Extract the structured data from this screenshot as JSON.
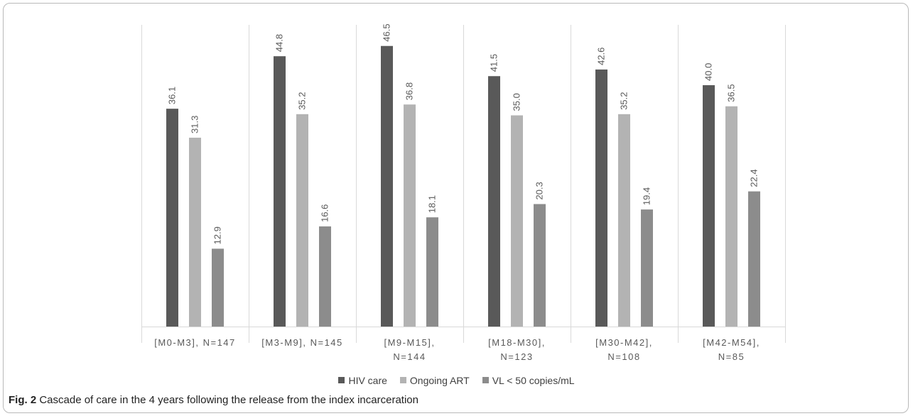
{
  "chart_data": {
    "type": "bar",
    "categories": [
      [
        "[M0-M3], N=147"
      ],
      [
        "[M3-M9], N=145"
      ],
      [
        "[M9-M15],",
        "N=144"
      ],
      [
        "[M18-M30],",
        "N=123"
      ],
      [
        "[M30-M42],",
        "N=108"
      ],
      [
        "[M42-M54],",
        "N=85"
      ]
    ],
    "series": [
      {
        "name": "HIV care",
        "color": "#595959",
        "values": [
          36.1,
          44.8,
          46.5,
          41.5,
          42.6,
          40.0
        ]
      },
      {
        "name": "Ongoing ART",
        "color": "#b3b3b3",
        "values": [
          31.3,
          35.2,
          36.8,
          35.0,
          35.2,
          36.5
        ]
      },
      {
        "name": "VL < 50 copies/mL",
        "color": "#8c8c8c",
        "values": [
          12.9,
          16.6,
          18.1,
          20.3,
          19.4,
          22.4
        ]
      }
    ],
    "ylim": [
      0,
      50
    ],
    "grid": false,
    "legend_position": "bottom",
    "data_labels": true
  },
  "caption": {
    "label": "Fig. 2",
    "text": "Cascade of care in the 4 years following the release from the index incarceration"
  }
}
